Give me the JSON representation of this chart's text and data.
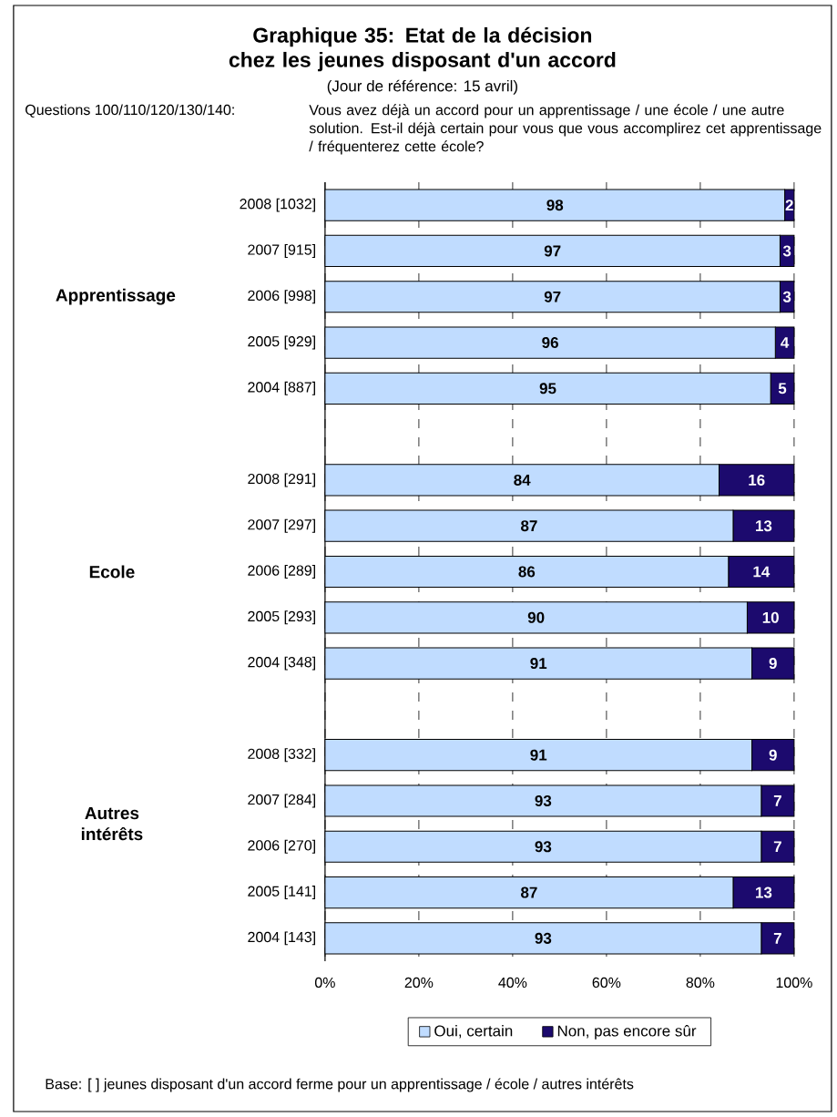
{
  "chart_data": {
    "type": "bar",
    "orientation": "horizontal",
    "stacked": true,
    "title": "Graphique 35: Etat de la décision chez les jeunes disposant d'un accord",
    "subtitle": "(Jour de référence: 15 avril)",
    "categories": [
      "2008 [1032]",
      "2007 [915]",
      "2006 [998]",
      "2005 [929]",
      "2004 [887]",
      null,
      "2008 [291]",
      "2007 [297]",
      "2006 [289]",
      "2005 [293]",
      "2004 [348]",
      null,
      "2008 [332]",
      "2007 [284]",
      "2006 [270]",
      "2005 [141]",
      "2004 [143]"
    ],
    "series": [
      {
        "name": "Oui, certain",
        "color": "#c0dcff",
        "values": [
          98,
          97,
          97,
          96,
          95,
          null,
          84,
          87,
          86,
          90,
          91,
          null,
          91,
          93,
          93,
          87,
          93
        ]
      },
      {
        "name": "Non, pas encore sûr",
        "color": "#1c0a6e",
        "values": [
          2,
          3,
          3,
          4,
          5,
          null,
          16,
          13,
          14,
          10,
          9,
          null,
          9,
          7,
          7,
          13,
          7
        ]
      }
    ],
    "xlim": [
      0,
      100
    ],
    "xticks": [
      {
        "value": 0,
        "label": "0%"
      },
      {
        "value": 20,
        "label": "20%"
      },
      {
        "value": 40,
        "label": "40%"
      },
      {
        "value": 60,
        "label": "60%"
      },
      {
        "value": 80,
        "label": "80%"
      },
      {
        "value": 100,
        "label": "100%"
      }
    ],
    "grid": "x",
    "legend": "bottom",
    "data_labels": true,
    "annotations": [
      "Apprentissage",
      "Ecole",
      "Autres intérêts",
      "Questions 100/110/120/130/140:",
      "Vous avez déjà un accord pour un apprentissage / une école / une autre solution. Est-il déjà certain pour vous que vous accomplirez cet apprentissage / fréquenterez cette école?",
      "Base:     [ ] jeunes disposant d'un accord ferme pour un apprentissage / école / autres intérêts"
    ]
  }
}
